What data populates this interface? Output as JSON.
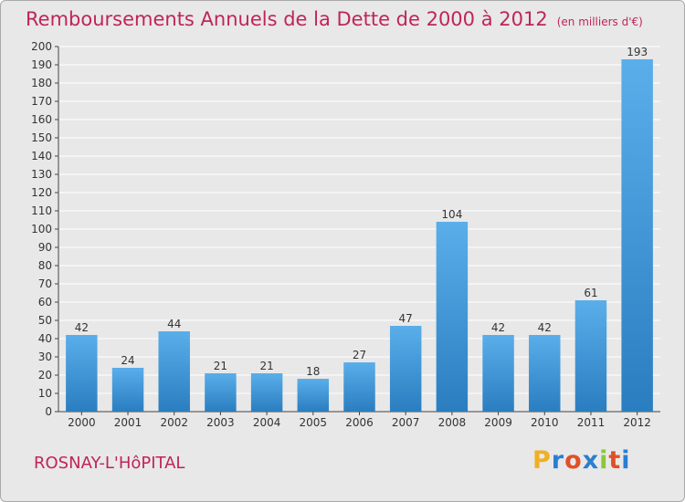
{
  "chart_data": {
    "type": "bar",
    "title": "Remboursements Annuels de la Dette de 2000 à 2012",
    "unit_note": "(en milliers d'€)",
    "categories": [
      "2000",
      "2001",
      "2002",
      "2003",
      "2004",
      "2005",
      "2006",
      "2007",
      "2008",
      "2009",
      "2010",
      "2011",
      "2012"
    ],
    "values": [
      42,
      24,
      44,
      21,
      21,
      18,
      27,
      47,
      104,
      42,
      42,
      61,
      193
    ],
    "ylim": [
      0,
      200
    ],
    "yticks": [
      0,
      10,
      20,
      30,
      40,
      50,
      60,
      70,
      80,
      90,
      100,
      110,
      120,
      130,
      140,
      150,
      160,
      170,
      180,
      190,
      200
    ],
    "grid": true,
    "legend": "none",
    "xlabel": "",
    "ylabel": ""
  },
  "footer": {
    "commune": "ROSNAY-L'HôPITAL",
    "logo": {
      "letters": [
        "P",
        "r",
        "o",
        "x",
        "i",
        "t",
        "i"
      ],
      "colors": [
        "#f0b020",
        "#2a7fd0",
        "#e05028",
        "#2a7fd0",
        "#8cc63f",
        "#e05028",
        "#2a7fd0"
      ]
    }
  },
  "colors": {
    "title": "#c0245a",
    "bar_light": "#5aaeea",
    "bar_dark": "#2a7ec0",
    "plot_background": "#e8e8e8",
    "grid": "#ffffff"
  }
}
